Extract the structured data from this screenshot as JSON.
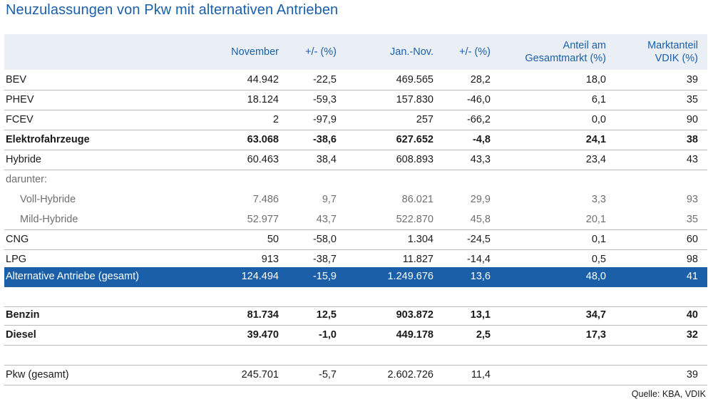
{
  "title": "Neuzulassungen von Pkw mit alternativen Antrieben",
  "headers": {
    "col1": [
      "November"
    ],
    "col2": [
      "+/- (%)"
    ],
    "col3": [
      "Jan.-Nov."
    ],
    "col4": [
      "+/- (%)"
    ],
    "col5": [
      "Anteil am",
      "Gesamtmarkt (%)"
    ],
    "col6": [
      "Marktanteil",
      "VDIK (%)"
    ]
  },
  "rows": [
    {
      "label": "BEV",
      "cells": [
        "44.942",
        "-22,5",
        "469.565",
        "28,2",
        "18,0",
        "39"
      ]
    },
    {
      "label": "PHEV",
      "cells": [
        "18.124",
        "-59,3",
        "157.830",
        "-46,0",
        "6,1",
        "35"
      ]
    },
    {
      "label": "FCEV",
      "cells": [
        "2",
        "-97,9",
        "257",
        "-66,2",
        "0,0",
        "90"
      ]
    },
    {
      "label": "Elektrofahrzeuge",
      "cells": [
        "63.068",
        "-38,6",
        "627.652",
        "-4,8",
        "24,1",
        "38"
      ]
    },
    {
      "label": "Hybride",
      "cells": [
        "60.463",
        "38,4",
        "608.893",
        "43,3",
        "23,4",
        "43"
      ]
    },
    {
      "label": "darunter:",
      "cells": [
        "",
        "",
        "",
        "",
        "",
        ""
      ]
    },
    {
      "label": "Voll-Hybride",
      "cells": [
        "7.486",
        "9,7",
        "86.021",
        "29,9",
        "3,3",
        "93"
      ]
    },
    {
      "label": "Mild-Hybride",
      "cells": [
        "52.977",
        "43,7",
        "522.870",
        "45,8",
        "20,1",
        "35"
      ]
    },
    {
      "label": "CNG",
      "cells": [
        "50",
        "-58,0",
        "1.304",
        "-24,5",
        "0,1",
        "60"
      ]
    },
    {
      "label": "LPG",
      "cells": [
        "913",
        "-38,7",
        "11.827",
        "-14,4",
        "0,5",
        "98"
      ]
    },
    {
      "label": "Alternative Antriebe (gesamt)",
      "cells": [
        "124.494",
        "-15,9",
        "1.249.676",
        "13,6",
        "48,0",
        "41"
      ]
    },
    {
      "label": "Benzin",
      "cells": [
        "81.734",
        "12,5",
        "903.872",
        "13,1",
        "34,7",
        "40"
      ]
    },
    {
      "label": "Diesel",
      "cells": [
        "39.470",
        "-1,0",
        "449.178",
        "2,5",
        "17,3",
        "32"
      ]
    },
    {
      "label": "Pkw (gesamt)",
      "cells": [
        "245.701",
        "-5,7",
        "2.602.726",
        "11,4",
        "",
        "39"
      ]
    }
  ],
  "source": "Quelle: KBA, VDIK"
}
